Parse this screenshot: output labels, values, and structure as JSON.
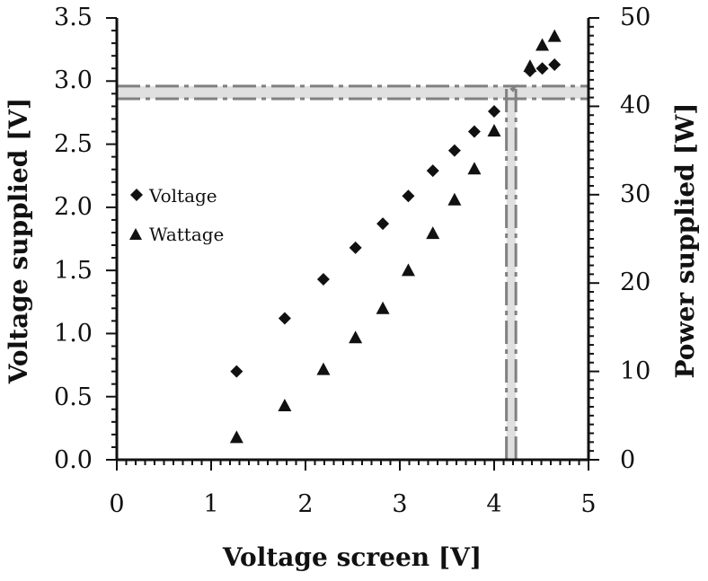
{
  "colors": {
    "axis": "#111111",
    "marker": "#111111",
    "guide_dash": "#808080",
    "guide_band": "#e0e0e0"
  },
  "chart_data": {
    "type": "scatter",
    "xlabel": "Voltage screen [V]",
    "ylabel": "Voltage supplied [V]",
    "y2label": "Power supplied [W]",
    "xlim": [
      0,
      5
    ],
    "ylim": [
      0,
      3.5
    ],
    "y2lim": [
      0,
      50
    ],
    "x_ticks": [
      "0",
      "1",
      "2",
      "3",
      "4",
      "5"
    ],
    "y_ticks": [
      "0.0",
      "0.5",
      "1.0",
      "1.5",
      "2.0",
      "2.5",
      "3.0",
      "3.5"
    ],
    "y2_ticks": [
      "0",
      "10",
      "20",
      "30",
      "40",
      "50"
    ],
    "grid": false,
    "legend_position": "left",
    "series": [
      {
        "name": "Voltage",
        "marker": "diamond",
        "axis": "left",
        "x": [
          1.27,
          1.78,
          2.19,
          2.53,
          2.82,
          3.09,
          3.35,
          3.58,
          3.79,
          4.0,
          4.38,
          4.51,
          4.64
        ],
        "y": [
          0.7,
          1.12,
          1.43,
          1.68,
          1.87,
          2.09,
          2.29,
          2.45,
          2.6,
          2.76,
          3.08,
          3.1,
          3.13
        ]
      },
      {
        "name": "Wattage",
        "marker": "triangle",
        "axis": "right",
        "x": [
          1.27,
          1.78,
          2.19,
          2.53,
          2.82,
          3.09,
          3.35,
          3.58,
          3.79,
          4.0,
          4.38,
          4.51,
          4.64
        ],
        "y": [
          2.5,
          6.1,
          10.2,
          13.8,
          17.1,
          21.4,
          25.6,
          29.4,
          32.9,
          37.2,
          44.5,
          46.9,
          47.9
        ]
      }
    ],
    "guides": [
      {
        "kind": "vertical-range",
        "axis": "x",
        "range": [
          4.13,
          4.23
        ]
      },
      {
        "kind": "horizontal-range",
        "axis": "y",
        "range": [
          2.86,
          2.96
        ]
      }
    ]
  }
}
